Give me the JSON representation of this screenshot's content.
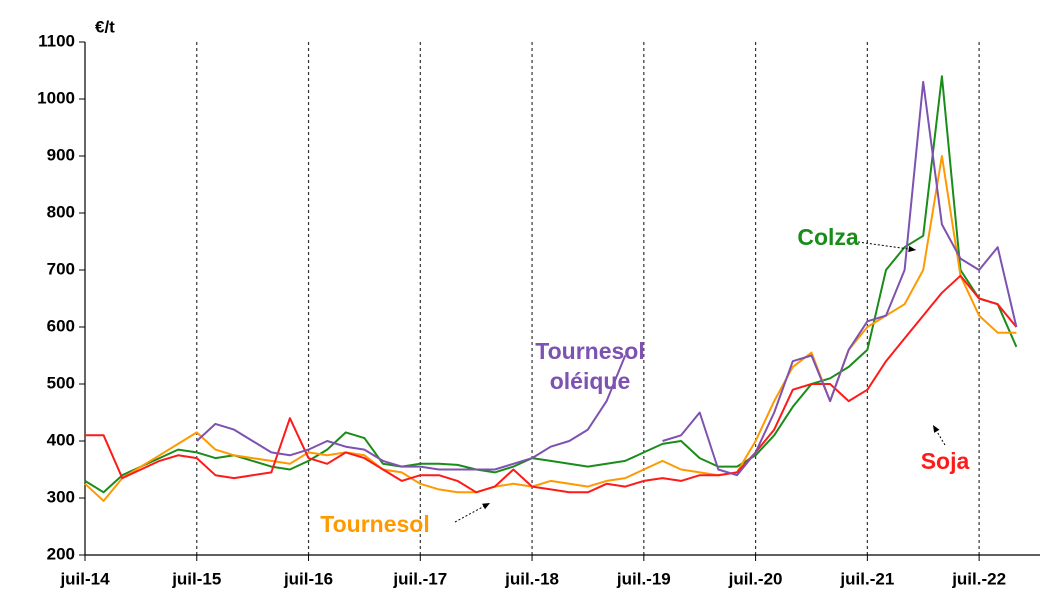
{
  "chart_data": {
    "type": "line",
    "y_label": "€/t",
    "x": [
      "2014-07",
      "2014-09",
      "2014-11",
      "2015-01",
      "2015-03",
      "2015-05",
      "2015-07",
      "2015-09",
      "2015-11",
      "2016-01",
      "2016-03",
      "2016-05",
      "2016-07",
      "2016-09",
      "2016-11",
      "2017-01",
      "2017-03",
      "2017-05",
      "2017-07",
      "2017-09",
      "2017-11",
      "2018-01",
      "2018-03",
      "2018-05",
      "2018-07",
      "2018-09",
      "2018-11",
      "2019-01",
      "2019-03",
      "2019-05",
      "2019-07",
      "2019-09",
      "2019-11",
      "2020-01",
      "2020-03",
      "2020-05",
      "2020-07",
      "2020-09",
      "2020-11",
      "2021-01",
      "2021-03",
      "2021-05",
      "2021-07",
      "2021-09",
      "2021-11",
      "2022-01",
      "2022-03",
      "2022-05",
      "2022-07",
      "2022-09",
      "2022-11"
    ],
    "series": [
      {
        "name": "Colza",
        "color": "#1a8c1a",
        "values": [
          330,
          310,
          340,
          355,
          370,
          385,
          380,
          370,
          375,
          365,
          355,
          350,
          365,
          385,
          415,
          405,
          360,
          355,
          360,
          360,
          358,
          350,
          345,
          355,
          370,
          365,
          360,
          355,
          360,
          365,
          380,
          395,
          400,
          370,
          355,
          355,
          375,
          410,
          460,
          500,
          510,
          530,
          560,
          700,
          740,
          760,
          1040,
          700,
          650,
          640,
          565
        ]
      },
      {
        "name": "Tournesol",
        "color": "#ff9900",
        "values": [
          325,
          295,
          335,
          355,
          375,
          395,
          415,
          385,
          375,
          370,
          365,
          360,
          380,
          375,
          380,
          375,
          350,
          345,
          325,
          315,
          310,
          310,
          320,
          325,
          320,
          330,
          325,
          320,
          330,
          335,
          350,
          365,
          350,
          345,
          340,
          345,
          400,
          470,
          530,
          555,
          470,
          560,
          600,
          620,
          640,
          700,
          900,
          690,
          620,
          590,
          590
        ]
      },
      {
        "name": "Soja",
        "color": "#ff1a1a",
        "values": [
          410,
          410,
          335,
          350,
          365,
          375,
          370,
          340,
          335,
          340,
          345,
          440,
          370,
          360,
          380,
          370,
          350,
          330,
          340,
          340,
          330,
          310,
          320,
          350,
          320,
          315,
          310,
          310,
          325,
          320,
          330,
          335,
          330,
          340,
          340,
          345,
          380,
          420,
          490,
          500,
          500,
          470,
          490,
          540,
          580,
          620,
          660,
          690,
          650,
          640,
          600
        ]
      },
      {
        "name": "Tournesol oléique",
        "color": "#7d52b0",
        "values": [
          null,
          null,
          null,
          null,
          null,
          null,
          400,
          430,
          420,
          400,
          380,
          375,
          385,
          400,
          390,
          385,
          365,
          355,
          355,
          350,
          350,
          350,
          350,
          360,
          370,
          390,
          400,
          420,
          470,
          550,
          null,
          400,
          410,
          450,
          350,
          340,
          380,
          450,
          540,
          550,
          470,
          560,
          610,
          620,
          700,
          1030,
          780,
          720,
          700,
          740,
          600
        ]
      }
    ],
    "xlim": [
      "2014-07",
      "2023-01"
    ],
    "xticks": [
      {
        "value": "2014-07",
        "label": "juil-14"
      },
      {
        "value": "2015-07",
        "label": "juil-15"
      },
      {
        "value": "2016-07",
        "label": "juil-16"
      },
      {
        "value": "2017-07",
        "label": "juil.-17"
      },
      {
        "value": "2018-07",
        "label": "juil.-18"
      },
      {
        "value": "2019-07",
        "label": "juil.-19"
      },
      {
        "value": "2020-07",
        "label": "juil.-20"
      },
      {
        "value": "2021-07",
        "label": "juil.-21"
      },
      {
        "value": "2022-07",
        "label": "juil.-22"
      }
    ],
    "ylim": [
      200,
      1100
    ],
    "yticks": [
      200,
      300,
      400,
      500,
      600,
      700,
      800,
      900,
      1000,
      1100
    ],
    "grid": "x"
  }
}
